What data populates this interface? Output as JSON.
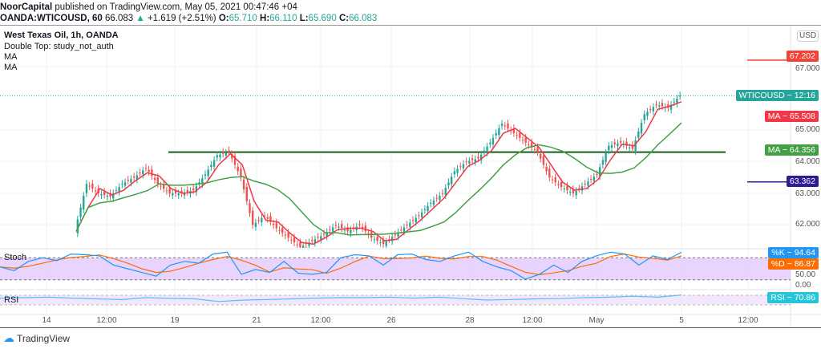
{
  "header": {
    "publisher": "NoorCapital",
    "published": "published on TradingView.com, May 05, 2021 00:47:46 +04",
    "symbol": "OANDA:WTICOUSD, 60",
    "last": "66.083",
    "change": "+1.619 (+2.51%)",
    "o": "65.710",
    "h": "66.110",
    "l": "65.690",
    "c": "66.083"
  },
  "legend": {
    "title": "West Texas Oil, 1h, OANDA",
    "study": "Double Top: study_not_auth",
    "ma1": "MA",
    "ma2": "MA",
    "stoch": "Stoch",
    "rsi": "RSI"
  },
  "price_axis": {
    "currency": "USD",
    "ticks": [
      "67.000",
      "65.000",
      "64.000",
      "63.000",
      "62.000"
    ],
    "stoch_ticks": [
      "50.00",
      "0.00"
    ]
  },
  "tags": {
    "red_level": "67.202",
    "symbol_tag": "WTICOUSD − 12:16",
    "ma_fast": "MA − 65.508",
    "ma_slow": "MA − 64.356",
    "blue_level": "63.362",
    "k": "%K − 94.64",
    "d": "%D − 86.87",
    "rsi": "RSI − 70.86"
  },
  "time_axis": [
    "14",
    "12:00",
    "19",
    "21",
    "12:00",
    "26",
    "28",
    "12:00",
    "May",
    "5",
    "12:00"
  ],
  "footer": {
    "brand": "TradingView"
  },
  "colors": {
    "up": "#26a69a",
    "down": "#ef5350",
    "ma_fast": "#f23645",
    "ma_slow": "#43a047",
    "support": "#1b5e20",
    "red_level": "#f44336",
    "blue_level": "#311b92",
    "k": "#2196f3",
    "d": "#ff6d00",
    "rsi": "#4fc3f7",
    "band": "#e1c4ff"
  },
  "chart_data": {
    "type": "candlestick",
    "ylim": [
      61.3,
      68.2
    ],
    "closes": [
      61.8,
      63.3,
      63.0,
      62.9,
      63.3,
      63.5,
      63.8,
      63.3,
      63.0,
      63.0,
      63.1,
      63.6,
      64.2,
      64.3,
      63.5,
      62.0,
      62.3,
      61.9,
      61.6,
      61.3,
      61.5,
      61.7,
      62.0,
      61.8,
      62.0,
      61.6,
      61.4,
      61.7,
      62.0,
      62.3,
      62.7,
      63.0,
      63.7,
      64.0,
      64.1,
      64.6,
      65.2,
      64.9,
      64.6,
      64.3,
      63.5,
      63.2,
      63.0,
      63.3,
      63.6,
      64.5,
      64.6,
      64.4,
      65.5,
      65.8,
      65.7,
      66.083
    ],
    "support_level": 64.3,
    "red_level": 67.202,
    "blue_level": 63.362,
    "stoch_k": [
      55,
      45,
      70,
      80,
      72,
      90,
      88,
      85,
      60,
      50,
      40,
      30,
      60,
      70,
      65,
      90,
      95,
      35,
      48,
      40,
      70,
      38,
      35,
      40,
      80,
      88,
      85,
      60,
      88,
      90,
      75,
      70,
      85,
      95,
      70,
      55,
      45,
      22,
      35,
      60,
      40,
      70,
      85,
      95,
      90,
      60,
      85,
      75,
      94.64
    ],
    "rsi": [
      58,
      60,
      62,
      58,
      55,
      52,
      60,
      57,
      55,
      44,
      50,
      52,
      55,
      58,
      60,
      60,
      62,
      58,
      62,
      56,
      50,
      52,
      55,
      56,
      60,
      62,
      66,
      62,
      70.86
    ]
  }
}
